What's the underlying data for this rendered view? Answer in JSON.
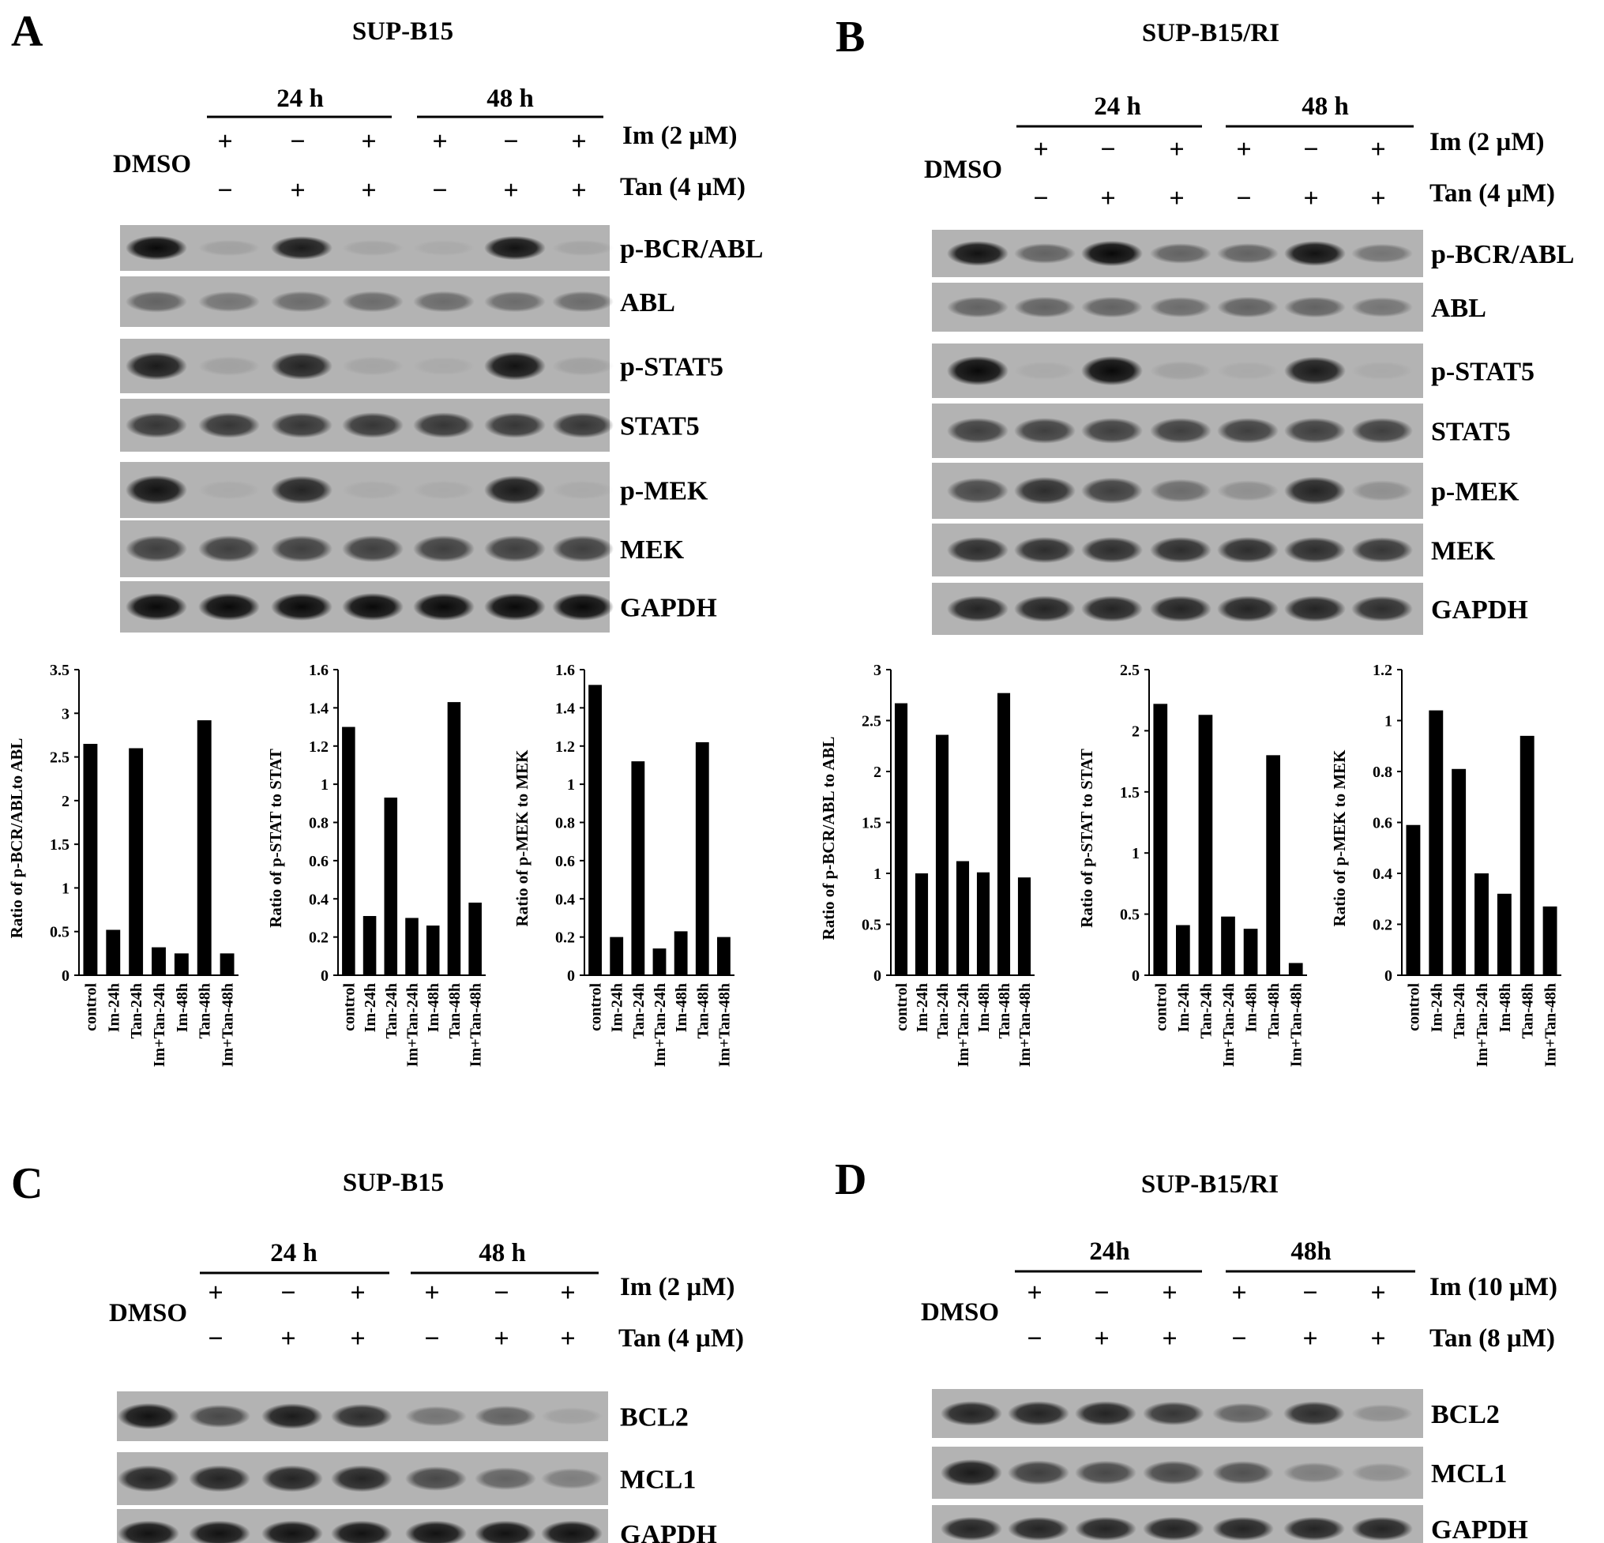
{
  "panels": [
    {
      "letter": "A",
      "title": "SUP-B15",
      "time_headers": [
        "24 h",
        "48 h"
      ],
      "dmso": "DMSO",
      "im_signs": [
        "+",
        "−",
        "+",
        "+",
        "−",
        "+"
      ],
      "tan_signs": [
        "−",
        "+",
        "+",
        "−",
        "+",
        "+"
      ],
      "im_label": "Im (2 µM)",
      "tan_label": "Tan (4 µM)",
      "blots": [
        {
          "label": "p-BCR/ABL",
          "intensity": [
            0.95,
            0.1,
            0.85,
            0.08,
            0.05,
            0.9,
            0.08
          ]
        },
        {
          "label": "ABL",
          "intensity": [
            0.45,
            0.35,
            0.4,
            0.4,
            0.4,
            0.4,
            0.4
          ]
        },
        {
          "label": "p-STAT5",
          "intensity": [
            0.85,
            0.1,
            0.8,
            0.08,
            0.05,
            0.9,
            0.1
          ]
        },
        {
          "label": "STAT5",
          "intensity": [
            0.7,
            0.7,
            0.7,
            0.7,
            0.7,
            0.7,
            0.7
          ]
        },
        {
          "label": "p-MEK",
          "intensity": [
            0.9,
            0.05,
            0.8,
            0.05,
            0.05,
            0.85,
            0.05
          ]
        },
        {
          "label": "MEK",
          "intensity": [
            0.65,
            0.65,
            0.65,
            0.65,
            0.65,
            0.65,
            0.65
          ]
        },
        {
          "label": "GAPDH",
          "intensity": [
            0.95,
            0.95,
            0.95,
            0.95,
            0.95,
            0.95,
            0.95
          ]
        }
      ]
    },
    {
      "letter": "B",
      "title": "SUP-B15/RI",
      "time_headers": [
        "24 h",
        "48 h"
      ],
      "dmso": "DMSO",
      "im_signs": [
        "+",
        "−",
        "+",
        "+",
        "−",
        "+"
      ],
      "tan_signs": [
        "−",
        "+",
        "+",
        "−",
        "+",
        "+"
      ],
      "im_label": "Im (2 µM)",
      "tan_label": "Tan (4 µM)",
      "blots": [
        {
          "label": "p-BCR/ABL",
          "intensity": [
            0.9,
            0.45,
            0.95,
            0.45,
            0.45,
            0.9,
            0.35
          ]
        },
        {
          "label": "ABL",
          "intensity": [
            0.45,
            0.45,
            0.45,
            0.4,
            0.45,
            0.45,
            0.35
          ]
        },
        {
          "label": "p-STAT5",
          "intensity": [
            0.95,
            0.05,
            0.95,
            0.1,
            0.05,
            0.85,
            0.05
          ]
        },
        {
          "label": "STAT5",
          "intensity": [
            0.65,
            0.65,
            0.65,
            0.65,
            0.65,
            0.65,
            0.65
          ]
        },
        {
          "label": "p-MEK",
          "intensity": [
            0.6,
            0.75,
            0.65,
            0.4,
            0.2,
            0.8,
            0.2
          ]
        },
        {
          "label": "MEK",
          "intensity": [
            0.75,
            0.75,
            0.75,
            0.75,
            0.75,
            0.75,
            0.7
          ]
        },
        {
          "label": "GAPDH",
          "intensity": [
            0.8,
            0.8,
            0.8,
            0.8,
            0.8,
            0.8,
            0.75
          ]
        }
      ]
    },
    {
      "letter": "C",
      "title": "SUP-B15",
      "time_headers": [
        "24 h",
        "48 h"
      ],
      "dmso": "DMSO",
      "im_signs": [
        "+",
        "−",
        "+",
        "+",
        "−",
        "+"
      ],
      "tan_signs": [
        "−",
        "+",
        "+",
        "−",
        "+",
        "+"
      ],
      "im_label": "Im (2 µM)",
      "tan_label": "Tan (4 µM)",
      "blots": [
        {
          "label": "BCL2",
          "intensity": [
            0.9,
            0.6,
            0.85,
            0.75,
            0.35,
            0.45,
            0.1
          ]
        },
        {
          "label": "MCL1",
          "intensity": [
            0.8,
            0.8,
            0.8,
            0.8,
            0.6,
            0.45,
            0.3
          ]
        },
        {
          "label": "GAPDH",
          "intensity": [
            0.9,
            0.9,
            0.9,
            0.9,
            0.9,
            0.9,
            0.9
          ]
        }
      ]
    },
    {
      "letter": "D",
      "title": "SUP-B15/RI",
      "time_headers": [
        "24h",
        "48h"
      ],
      "dmso": "DMSO",
      "im_signs": [
        "+",
        "−",
        "+",
        "+",
        "−",
        "+"
      ],
      "tan_signs": [
        "−",
        "+",
        "+",
        "−",
        "+",
        "+"
      ],
      "im_label": "Im (10 µM)",
      "tan_label": "Tan (8 µM)",
      "blots": [
        {
          "label": "BCL2",
          "intensity": [
            0.8,
            0.8,
            0.8,
            0.7,
            0.45,
            0.75,
            0.2
          ]
        },
        {
          "label": "MCL1",
          "intensity": [
            0.85,
            0.65,
            0.6,
            0.6,
            0.55,
            0.3,
            0.2
          ]
        },
        {
          "label": "GAPDH",
          "intensity": [
            0.8,
            0.8,
            0.8,
            0.8,
            0.8,
            0.8,
            0.8
          ]
        }
      ]
    }
  ],
  "chart_data": [
    {
      "type": "bar",
      "panel": "A",
      "categories": [
        "control",
        "Im-24h",
        "Tan-24h",
        "Im+Tan-24h",
        "Im-48h",
        "Tan-48h",
        "Im+Tan-48h"
      ],
      "values": [
        2.65,
        0.52,
        2.6,
        0.32,
        0.25,
        2.92,
        0.25
      ],
      "ylabel": "Ratio of p-BCR/ABLto ABL",
      "ylim": [
        0,
        3.5
      ],
      "yticks": [
        "0",
        "0.5",
        "1",
        "1.5",
        "2",
        "2.5",
        "3",
        "3.5"
      ]
    },
    {
      "type": "bar",
      "panel": "A",
      "categories": [
        "control",
        "Im-24h",
        "Tan-24h",
        "Im+Tan-24h",
        "Im-48h",
        "Tan-48h",
        "Im+Tan-48h"
      ],
      "values": [
        1.3,
        0.31,
        0.93,
        0.3,
        0.26,
        1.43,
        0.38
      ],
      "ylabel": "Ratio of p-STAT to STAT",
      "ylim": [
        0,
        1.6
      ],
      "yticks": [
        "0",
        "0.2",
        "0.4",
        "0.6",
        "0.8",
        "1",
        "1.2",
        "1.4",
        "1.6"
      ]
    },
    {
      "type": "bar",
      "panel": "A",
      "categories": [
        "control",
        "Im-24h",
        "Tan-24h",
        "Im+Tan-24h",
        "Im-48h",
        "Tan-48h",
        "Im+Tan-48h"
      ],
      "values": [
        1.52,
        0.2,
        1.12,
        0.14,
        0.23,
        1.22,
        0.2
      ],
      "ylabel": "Ratio of p-MEK to MEK",
      "ylim": [
        0,
        1.6
      ],
      "yticks": [
        "0",
        "0.2",
        "0.4",
        "0.6",
        "0.8",
        "1",
        "1.2",
        "1.4",
        "1.6"
      ]
    },
    {
      "type": "bar",
      "panel": "B",
      "categories": [
        "control",
        "Im-24h",
        "Tan-24h",
        "Im+Tan-24h",
        "Im-48h",
        "Tan-48h",
        "Im+Tan-48h"
      ],
      "values": [
        2.67,
        1.0,
        2.36,
        1.12,
        1.01,
        2.77,
        0.96
      ],
      "ylabel": "Ratio of p-BCR/ABL to ABL",
      "ylim": [
        0,
        3
      ],
      "yticks": [
        "0",
        "0.5",
        "1",
        "1.5",
        "2",
        "2.5",
        "3"
      ]
    },
    {
      "type": "bar",
      "panel": "B",
      "categories": [
        "control",
        "Im-24h",
        "Tan-24h",
        "Im+Tan-24h",
        "Im-48h",
        "Tan-48h",
        "Im+Tan-48h"
      ],
      "values": [
        2.22,
        0.41,
        2.13,
        0.48,
        0.38,
        1.8,
        0.1
      ],
      "ylabel": "Ratio of p-STAT to STAT",
      "ylim": [
        0,
        2.5
      ],
      "yticks": [
        "0",
        "0.5",
        "1",
        "1.5",
        "2",
        "2.5"
      ]
    },
    {
      "type": "bar",
      "panel": "B",
      "categories": [
        "control",
        "Im-24h",
        "Tan-24h",
        "Im+Tan-24h",
        "Im-48h",
        "Tan-48h",
        "Im+Tan-48h"
      ],
      "values": [
        0.59,
        1.04,
        0.81,
        0.4,
        0.32,
        0.94,
        0.27
      ],
      "ylabel": "Ratio of p-MEK to MEK",
      "ylim": [
        0,
        1.2
      ],
      "yticks": [
        "0",
        "0.2",
        "0.4",
        "0.6",
        "0.8",
        "1",
        "1.2"
      ]
    }
  ]
}
